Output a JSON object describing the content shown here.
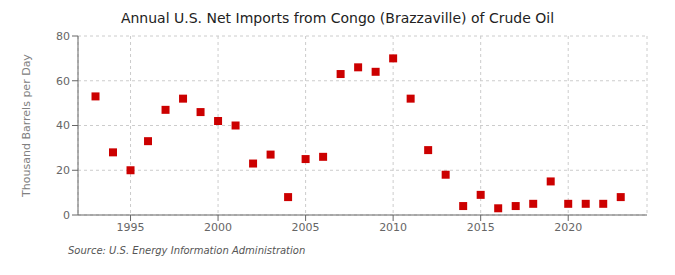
{
  "chart_data": {
    "type": "scatter",
    "title": "Annual U.S. Net Imports from Congo (Brazzaville) of Crude Oil",
    "ylabel": "Thousand Barrels per Day",
    "annotation": "Source: U.S. Energy Information Administration",
    "x": [
      1993,
      1994,
      1995,
      1996,
      1997,
      1998,
      1999,
      2000,
      2001,
      2002,
      2003,
      2004,
      2005,
      2006,
      2007,
      2008,
      2009,
      2010,
      2011,
      2012,
      2013,
      2014,
      2015,
      2016,
      2017,
      2018,
      2019,
      2020,
      2021,
      2022,
      2023
    ],
    "values": [
      53,
      28,
      20,
      33,
      47,
      52,
      46,
      42,
      40,
      23,
      27,
      8,
      25,
      26,
      63,
      66,
      64,
      70,
      52,
      29,
      18,
      4,
      9,
      3,
      4,
      5,
      15,
      5,
      5,
      5,
      8
    ],
    "color": "#cc0000",
    "marker": "square",
    "xlim": [
      1992,
      2024.5
    ],
    "ylim": [
      0,
      80
    ],
    "xticks": [
      1995,
      2000,
      2005,
      2010,
      2015,
      2020
    ],
    "yticks": [
      0,
      20,
      40,
      60,
      80
    ],
    "grid": true
  }
}
